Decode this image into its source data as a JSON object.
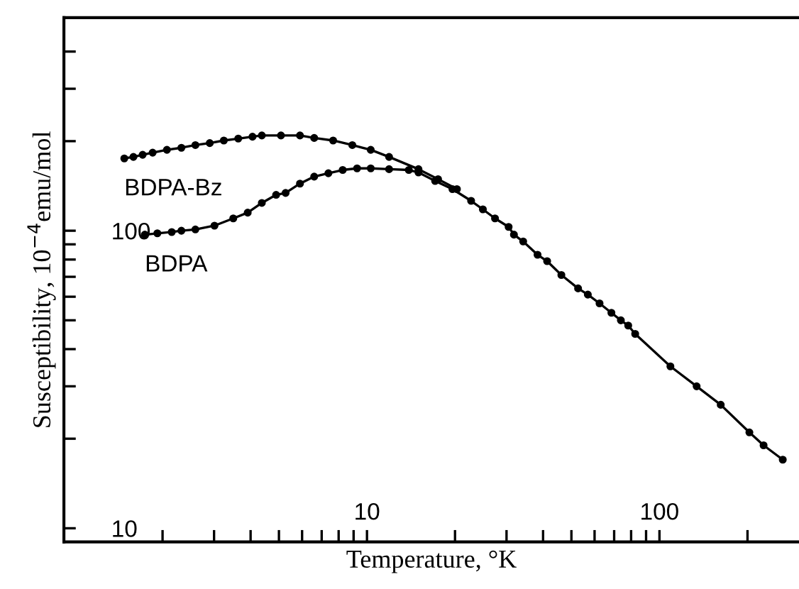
{
  "chart_data": {
    "type": "line",
    "xlabel": "Temperature, °K",
    "ylabel": "Susceptibility, 10$^{−4}$emu/mol",
    "log": "xy",
    "xlim": [
      0.92,
      300
    ],
    "ylim": [
      9,
      520
    ],
    "xticks": [
      {
        "value": 2,
        "label": null
      },
      {
        "value": 3,
        "label": null
      },
      {
        "value": 4,
        "label": null
      },
      {
        "value": 5,
        "label": null
      },
      {
        "value": 6,
        "label": null
      },
      {
        "value": 7,
        "label": null
      },
      {
        "value": 8,
        "label": null
      },
      {
        "value": 9,
        "label": null
      },
      10,
      {
        "value": 20,
        "label": null
      },
      {
        "value": 30,
        "label": null
      },
      {
        "value": 40,
        "label": null
      },
      {
        "value": 50,
        "label": null
      },
      {
        "value": 60,
        "label": null
      },
      {
        "value": 70,
        "label": null
      },
      {
        "value": 80,
        "label": null
      },
      {
        "value": 90,
        "label": null
      },
      100,
      {
        "value": 200,
        "label": null
      }
    ],
    "yticks": [
      10,
      {
        "value": 20,
        "label": null
      },
      {
        "value": 30,
        "label": null
      },
      {
        "value": 40,
        "label": null
      },
      {
        "value": 50,
        "label": null
      },
      {
        "value": 60,
        "label": null
      },
      {
        "value": 70,
        "label": null
      },
      {
        "value": 80,
        "label": null
      },
      {
        "value": 90,
        "label": null
      },
      100,
      {
        "value": 200,
        "label": null
      },
      {
        "value": 300,
        "label": null
      },
      {
        "value": 400,
        "label": null
      }
    ],
    "marker": "circle",
    "line_style": "solid",
    "grid": false,
    "legend": false,
    "series": [
      {
        "name": "BDPA-Bz",
        "color": "#000000",
        "x": [
          1.48,
          1.59,
          1.71,
          1.85,
          2.07,
          2.32,
          2.59,
          2.9,
          3.24,
          3.63,
          4.06,
          4.37,
          5.08,
          5.9,
          6.6,
          7.66,
          8.91,
          10.3,
          11.9,
          15.0,
          17.5,
          20.3
        ],
        "values": [
          175,
          177,
          180,
          183,
          187,
          190,
          194,
          197,
          201,
          204,
          207,
          209,
          209,
          209,
          205,
          201,
          194,
          187,
          177,
          161,
          149,
          138
        ]
      },
      {
        "name": "BDPA",
        "color": "#000000",
        "x": [
          1.74,
          1.92,
          2.15,
          2.32,
          2.59,
          3.01,
          3.49,
          3.91,
          4.37,
          4.89,
          5.27,
          5.9,
          6.6,
          7.38,
          8.26,
          9.25,
          10.3,
          11.9,
          13.9,
          15.0,
          17.1,
          19.6,
          22.7,
          24.9,
          27.4,
          30.5,
          31.8,
          34.2,
          38.3,
          41.3,
          46.2,
          52.7,
          56.9,
          62.4,
          68.5,
          73.8,
          78.2,
          82.6,
          109,
          134,
          162,
          203,
          227,
          264
        ],
        "values": [
          97,
          98,
          99,
          100,
          101,
          104,
          110,
          115,
          124,
          132,
          134,
          144,
          152,
          156,
          160,
          162,
          162,
          161,
          160,
          157,
          147,
          138,
          126,
          118,
          110,
          103,
          97,
          92,
          83,
          79,
          71,
          64,
          61,
          57,
          53,
          50,
          48,
          45,
          35,
          30,
          26,
          21,
          19,
          17
        ]
      }
    ]
  }
}
